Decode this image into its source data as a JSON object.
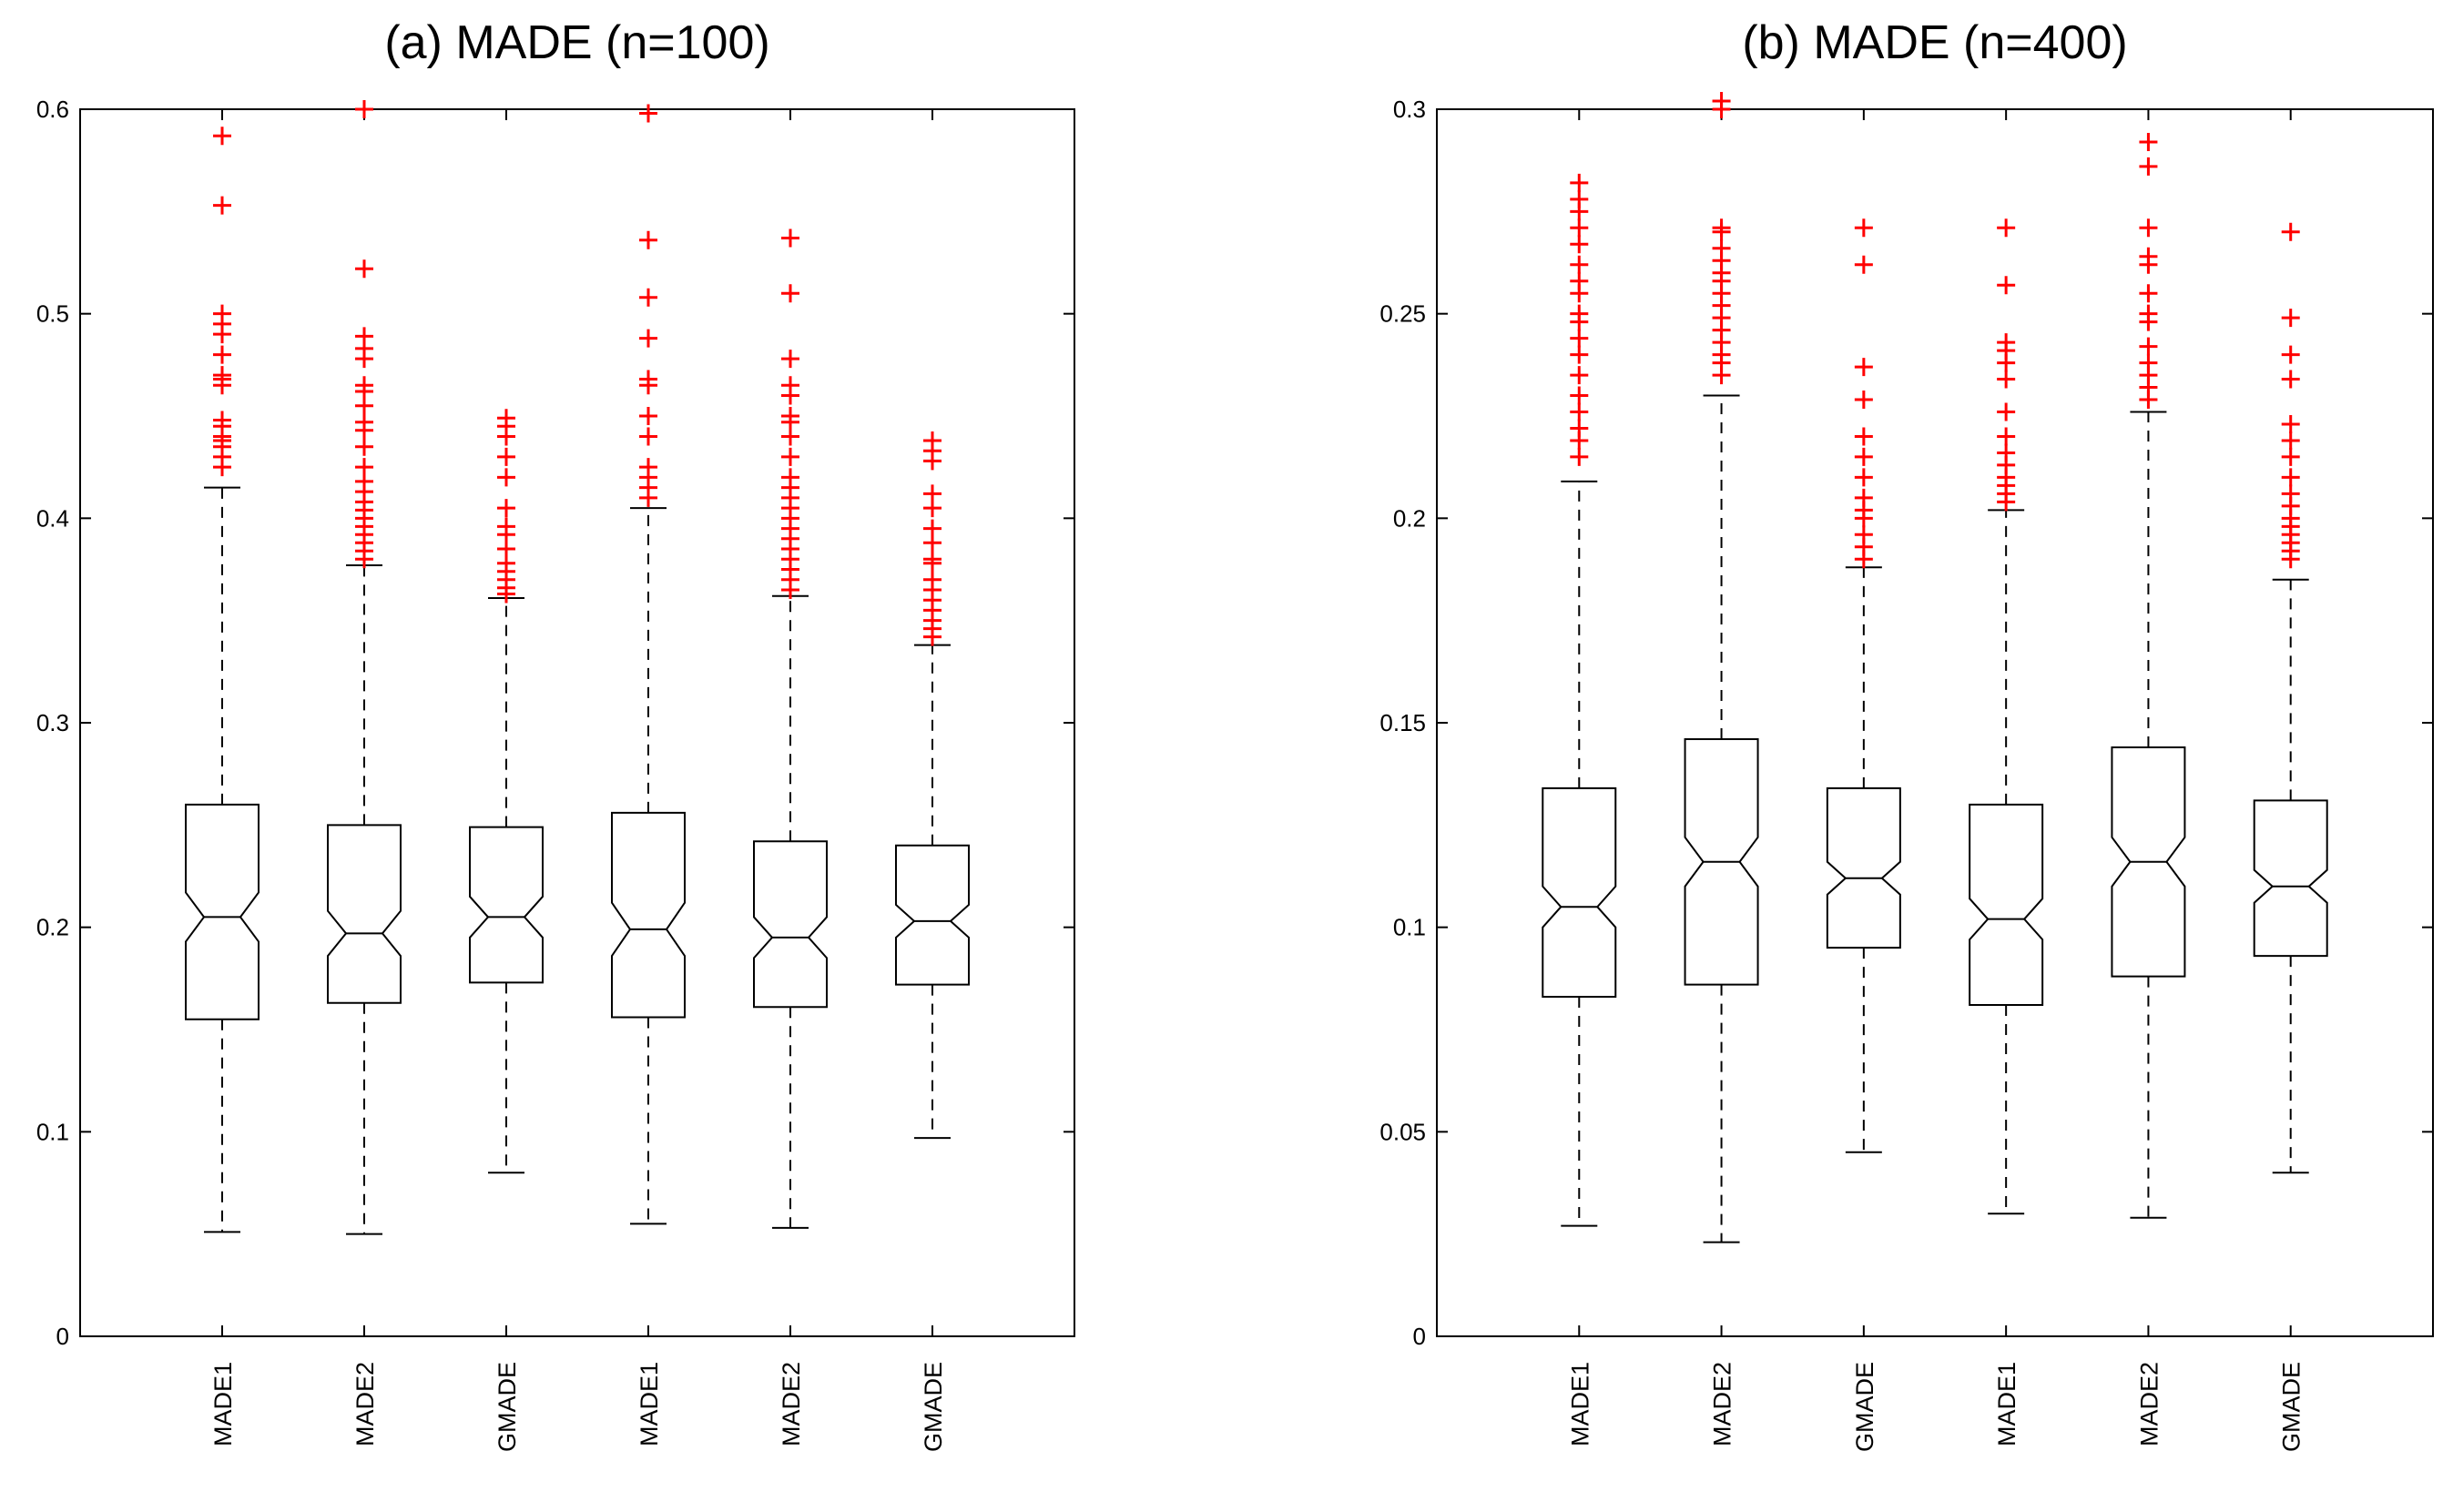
{
  "chart_data": [
    {
      "type": "boxplot",
      "title": "(a) MADE (n=100)",
      "xlabel": "",
      "ylabel": "",
      "ylim": [
        0,
        0.6
      ],
      "yticks": [
        0,
        0.1,
        0.2,
        0.3,
        0.4,
        0.5,
        0.6
      ],
      "ytick_labels": [
        "0",
        "0.1",
        "0.2",
        "0.3",
        "0.4",
        "0.5",
        "0.6"
      ],
      "reference_line": 0.6,
      "notched": true,
      "categories": [
        "MADE1",
        "MADE2",
        "GMADE",
        "MADE1",
        "MADE2",
        "GMADE"
      ],
      "boxes": [
        {
          "q1": 0.155,
          "median": 0.205,
          "q3": 0.26,
          "whisker_low": 0.051,
          "whisker_high": 0.415,
          "notch_low": 0.193,
          "notch_high": 0.217,
          "outliers": [
            0.425,
            0.43,
            0.435,
            0.438,
            0.44,
            0.445,
            0.448,
            0.465,
            0.468,
            0.47,
            0.48,
            0.49,
            0.495,
            0.5,
            0.553,
            0.587
          ]
        },
        {
          "q1": 0.163,
          "median": 0.197,
          "q3": 0.25,
          "whisker_low": 0.05,
          "whisker_high": 0.377,
          "notch_low": 0.186,
          "notch_high": 0.208,
          "outliers": [
            0.38,
            0.384,
            0.388,
            0.392,
            0.396,
            0.4,
            0.404,
            0.408,
            0.413,
            0.418,
            0.425,
            0.435,
            0.443,
            0.447,
            0.455,
            0.462,
            0.465,
            0.478,
            0.483,
            0.489,
            0.522,
            0.6
          ]
        },
        {
          "q1": 0.173,
          "median": 0.205,
          "q3": 0.249,
          "whisker_low": 0.08,
          "whisker_high": 0.361,
          "notch_low": 0.195,
          "notch_high": 0.215,
          "outliers": [
            0.363,
            0.366,
            0.37,
            0.374,
            0.378,
            0.385,
            0.392,
            0.396,
            0.405,
            0.42,
            0.43,
            0.44,
            0.445,
            0.449
          ]
        },
        {
          "q1": 0.156,
          "median": 0.199,
          "q3": 0.256,
          "whisker_low": 0.055,
          "whisker_high": 0.405,
          "notch_low": 0.186,
          "notch_high": 0.212,
          "outliers": [
            0.41,
            0.415,
            0.42,
            0.425,
            0.44,
            0.45,
            0.465,
            0.468,
            0.488,
            0.508,
            0.536,
            0.598
          ]
        },
        {
          "q1": 0.161,
          "median": 0.195,
          "q3": 0.242,
          "whisker_low": 0.053,
          "whisker_high": 0.362,
          "notch_low": 0.185,
          "notch_high": 0.205,
          "outliers": [
            0.365,
            0.37,
            0.375,
            0.38,
            0.385,
            0.39,
            0.395,
            0.4,
            0.405,
            0.41,
            0.415,
            0.42,
            0.43,
            0.44,
            0.447,
            0.45,
            0.46,
            0.465,
            0.478,
            0.51,
            0.537
          ]
        },
        {
          "q1": 0.172,
          "median": 0.203,
          "q3": 0.24,
          "whisker_low": 0.097,
          "whisker_high": 0.338,
          "notch_low": 0.195,
          "notch_high": 0.211,
          "outliers": [
            0.342,
            0.346,
            0.35,
            0.355,
            0.36,
            0.365,
            0.37,
            0.378,
            0.38,
            0.388,
            0.395,
            0.405,
            0.412,
            0.428,
            0.433,
            0.438
          ]
        }
      ]
    },
    {
      "type": "boxplot",
      "title": "(b) MADE (n=400)",
      "xlabel": "",
      "ylabel": "",
      "ylim": [
        0,
        0.3
      ],
      "yticks": [
        0,
        0.05,
        0.1,
        0.15,
        0.2,
        0.25,
        0.3
      ],
      "ytick_labels": [
        "0",
        "0.05",
        "0.1",
        "0.15",
        "0.2",
        "0.25",
        "0.3"
      ],
      "reference_line": 0.3,
      "notched": true,
      "categories": [
        "MADE1",
        "MADE2",
        "GMADE",
        "MADE1",
        "MADE2",
        "GMADE"
      ],
      "boxes": [
        {
          "q1": 0.083,
          "median": 0.105,
          "q3": 0.134,
          "whisker_low": 0.027,
          "whisker_high": 0.209,
          "notch_low": 0.1,
          "notch_high": 0.11,
          "outliers": [
            0.215,
            0.219,
            0.222,
            0.226,
            0.23,
            0.235,
            0.24,
            0.244,
            0.248,
            0.25,
            0.255,
            0.258,
            0.262,
            0.267,
            0.271,
            0.275,
            0.278,
            0.282
          ]
        },
        {
          "q1": 0.086,
          "median": 0.116,
          "q3": 0.146,
          "whisker_low": 0.023,
          "whisker_high": 0.23,
          "notch_low": 0.11,
          "notch_high": 0.122,
          "outliers": [
            0.235,
            0.238,
            0.24,
            0.243,
            0.246,
            0.249,
            0.252,
            0.255,
            0.258,
            0.26,
            0.263,
            0.266,
            0.27,
            0.271,
            0.3,
            0.302
          ]
        },
        {
          "q1": 0.095,
          "median": 0.112,
          "q3": 0.134,
          "whisker_low": 0.045,
          "whisker_high": 0.188,
          "notch_low": 0.108,
          "notch_high": 0.116,
          "outliers": [
            0.19,
            0.193,
            0.196,
            0.2,
            0.202,
            0.205,
            0.21,
            0.215,
            0.22,
            0.229,
            0.237,
            0.262,
            0.271
          ]
        },
        {
          "q1": 0.081,
          "median": 0.102,
          "q3": 0.13,
          "whisker_low": 0.03,
          "whisker_high": 0.202,
          "notch_low": 0.097,
          "notch_high": 0.107,
          "outliers": [
            0.204,
            0.206,
            0.208,
            0.21,
            0.213,
            0.216,
            0.22,
            0.226,
            0.234,
            0.238,
            0.241,
            0.243,
            0.257,
            0.271
          ]
        },
        {
          "q1": 0.088,
          "median": 0.116,
          "q3": 0.144,
          "whisker_low": 0.029,
          "whisker_high": 0.226,
          "notch_low": 0.11,
          "notch_high": 0.122,
          "outliers": [
            0.229,
            0.232,
            0.235,
            0.238,
            0.242,
            0.248,
            0.25,
            0.255,
            0.262,
            0.264,
            0.271,
            0.286,
            0.292
          ]
        },
        {
          "q1": 0.093,
          "median": 0.11,
          "q3": 0.131,
          "whisker_low": 0.04,
          "whisker_high": 0.185,
          "notch_low": 0.106,
          "notch_high": 0.114,
          "outliers": [
            0.19,
            0.192,
            0.194,
            0.196,
            0.198,
            0.2,
            0.203,
            0.206,
            0.21,
            0.215,
            0.219,
            0.223,
            0.234,
            0.24,
            0.249,
            0.27
          ]
        }
      ]
    }
  ]
}
